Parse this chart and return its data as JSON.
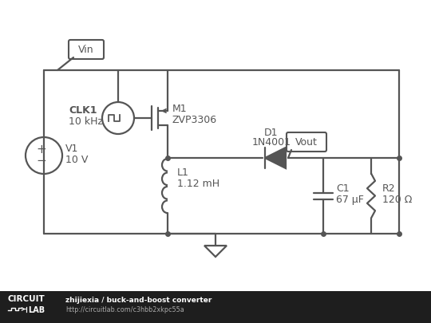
{
  "bg_color": "#ffffff",
  "footer_bg": "#1e1e1e",
  "circuit_color": "#555555",
  "footer_user": "zhijiexia / buck-and-boost converter",
  "footer_url": "http://circuitlab.com/c3hbb2xkpc55a",
  "vin_label": "Vin",
  "clk_label1": "CLK1",
  "clk_label2": "10 kHz",
  "v1_label1": "V1",
  "v1_label2": "10 V",
  "m1_label1": "M1",
  "m1_label2": "ZVP3306",
  "d1_label1": "D1",
  "d1_label2": "1N4001",
  "vout_label": "Vout",
  "l1_label1": "L1",
  "l1_label2": "1.12 mH",
  "c1_label1": "C1",
  "c1_label2": "67 μF",
  "r2_label1": "R2",
  "r2_label2": "120 Ω"
}
